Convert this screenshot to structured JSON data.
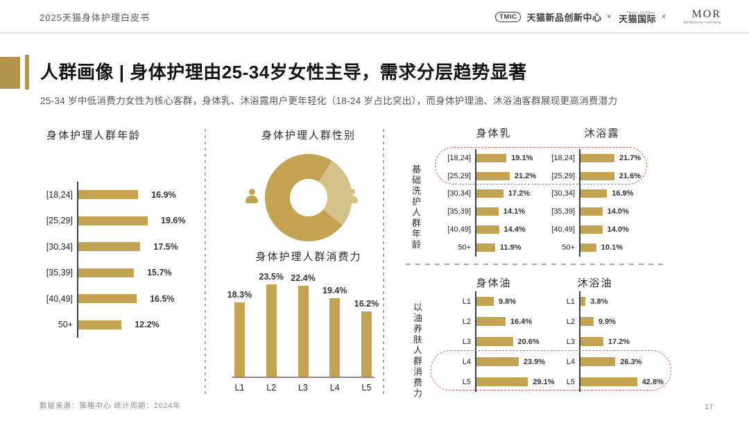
{
  "header": {
    "doc_title": "2025天猫身体护理白皮书",
    "logos": {
      "tmic_badge": "TMIC",
      "tmic_name": "天猫新品创新中心",
      "separator1": "×",
      "tmall_global_small": "TMALL GLOBAL",
      "tmall_global": "天猫国际",
      "separator2": "×",
      "mor": "MOR",
      "mor_sub": "Melbourne Australia"
    }
  },
  "title_block": {
    "title": "人群画像 | 身体护理由25-34岁女性主导，需求分层趋势显著",
    "subtitle": "25-34 岁中低消费力女性为核心客群，身体乳、沐浴露用户更年轻化（18-24 岁占比突出），而身体护理油、沐浴油客群展现更高消费潜力"
  },
  "section_labels": {
    "basic_wash_age": "基础洗护人群年龄",
    "oil_spend": "以油养肤人群消费力"
  },
  "chart_data": [
    {
      "id": "age",
      "type": "bar",
      "orientation": "horizontal",
      "title": "身体护理人群年龄",
      "categories": [
        "[18,24]",
        "[25,29]",
        "[30,34]",
        "[35,39]",
        "[40,49]",
        "50+"
      ],
      "values": [
        16.9,
        19.6,
        17.5,
        15.7,
        16.5,
        12.2
      ],
      "unit": "%"
    },
    {
      "id": "gender",
      "type": "pie",
      "title": "身体护理人群性别",
      "series": [
        {
          "name": "female",
          "value": 73
        },
        {
          "name": "male",
          "value": 27
        }
      ],
      "value_labels_shown": false
    },
    {
      "id": "spend",
      "type": "bar",
      "orientation": "vertical",
      "title": "身体护理人群消费力",
      "categories": [
        "L1",
        "L2",
        "L3",
        "L4",
        "L5"
      ],
      "values": [
        18.3,
        23.5,
        22.4,
        19.4,
        16.2
      ],
      "unit": "%"
    },
    {
      "id": "milk",
      "type": "bar",
      "orientation": "horizontal",
      "title": "身体乳",
      "group": "基础洗护人群年龄",
      "categories": [
        "[18,24]",
        "[25,29]",
        "[30,34]",
        "[35,39]",
        "[40,49]",
        "50+"
      ],
      "values": [
        19.1,
        21.2,
        17.2,
        14.1,
        14.4,
        11.9
      ],
      "unit": "%",
      "highlighted_categories": [
        "[18,24]",
        "[25,29]"
      ]
    },
    {
      "id": "gel",
      "type": "bar",
      "orientation": "horizontal",
      "title": "沐浴露",
      "group": "基础洗护人群年龄",
      "categories": [
        "[18,24]",
        "[25,29]",
        "[30,34]",
        "[35,39]",
        "[40,49]",
        "50+"
      ],
      "values": [
        21.7,
        21.6,
        16.9,
        14.0,
        14.0,
        10.1
      ],
      "unit": "%",
      "highlighted_categories": [
        "[18,24]",
        "[25,29]"
      ]
    },
    {
      "id": "body_oil",
      "type": "bar",
      "orientation": "horizontal",
      "title": "身体油",
      "group": "以油养肤人群消费力",
      "categories": [
        "L1",
        "L2",
        "L3",
        "L4",
        "L5"
      ],
      "values": [
        9.8,
        16.4,
        20.6,
        23.9,
        29.1
      ],
      "unit": "%",
      "highlighted_categories": [
        "L4",
        "L5"
      ]
    },
    {
      "id": "shower_oil",
      "type": "bar",
      "orientation": "horizontal",
      "title": "沐浴油",
      "group": "以油养肤人群消费力",
      "categories": [
        "L1",
        "L2",
        "L3",
        "L4",
        "L5"
      ],
      "values": [
        3.8,
        9.9,
        17.2,
        26.3,
        42.8
      ],
      "unit": "%",
      "highlighted_categories": [
        "L4",
        "L5"
      ]
    }
  ],
  "footer": {
    "source": "数据来源：策略中心    统计周期：2024年",
    "page_number": "17"
  },
  "colors": {
    "gold": "#C3A351",
    "gold_light": "#D5C28B",
    "gold_dark": "#B3944C",
    "accent_red": "#E05E5C",
    "text_gray": "#595757",
    "muted_gray": "#8C8C8C"
  }
}
